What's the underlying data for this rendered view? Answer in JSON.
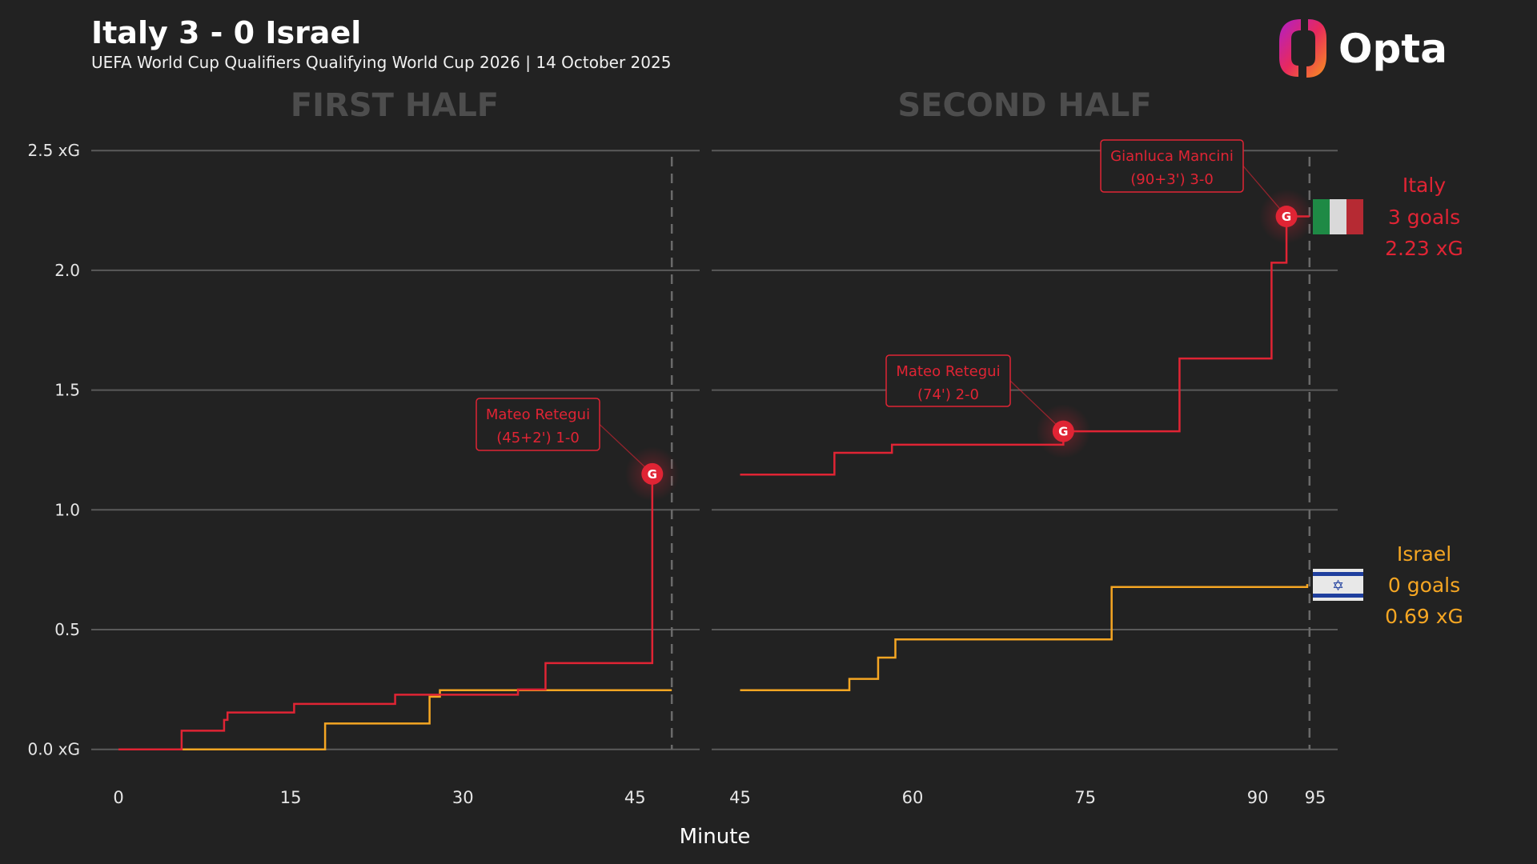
{
  "header": {
    "title": "Italy 3 - 0 Israel",
    "subtitle": "UEFA World Cup Qualifiers Qualifying World Cup 2026 | 14 October 2025",
    "logo_text": "Opta"
  },
  "chart_data": {
    "type": "line",
    "step": true,
    "title": "Italy 3 - 0 Israel",
    "subtitle": "UEFA World Cup Qualifiers Qualifying World Cup 2026 | 14 October 2025",
    "xlabel": "Minute",
    "ylabel": "xG",
    "ylim": [
      0,
      2.5
    ],
    "grid": true,
    "y_ticks": [
      {
        "value": 0.0,
        "label": "0.0 xG"
      },
      {
        "value": 0.5,
        "label": "0.5"
      },
      {
        "value": 1.0,
        "label": "1.0"
      },
      {
        "value": 1.5,
        "label": "1.5"
      },
      {
        "value": 2.0,
        "label": "2.0"
      },
      {
        "value": 2.5,
        "label": "2.5 xG"
      }
    ],
    "panels": [
      {
        "title": "FIRST HALF",
        "xlim": [
          0,
          48.2
        ],
        "end_minute": 48.2,
        "x_ticks": [
          {
            "value": 0,
            "label": "0"
          },
          {
            "value": 15,
            "label": "15"
          },
          {
            "value": 30,
            "label": "30"
          },
          {
            "value": 45,
            "label": "45"
          }
        ]
      },
      {
        "title": "SECOND HALF",
        "xlim": [
          45,
          95
        ],
        "end_minute": 94.5,
        "x_ticks": [
          {
            "value": 45,
            "label": "45"
          },
          {
            "value": 60,
            "label": "60"
          },
          {
            "value": 75,
            "label": "75"
          },
          {
            "value": 90,
            "label": "90"
          },
          {
            "value": 95,
            "label": "95"
          }
        ]
      }
    ],
    "series": [
      {
        "name": "Italy",
        "color": "#e02434",
        "goals_text": "3 goals",
        "xg_text": "2.23 xG",
        "flag": "italy-flag",
        "halves": [
          [
            [
              0,
              0
            ],
            [
              5.5,
              0.078
            ],
            [
              9.2,
              0.123
            ],
            [
              9.5,
              0.154
            ],
            [
              15.3,
              0.19
            ],
            [
              24.1,
              0.228
            ],
            [
              34.8,
              0.25
            ],
            [
              37.2,
              0.36
            ],
            [
              46.5,
              1.15
            ]
          ],
          [
            [
              45,
              1.147
            ],
            [
              53.2,
              1.238
            ],
            [
              58.2,
              1.272
            ],
            [
              73.1,
              1.328
            ],
            [
              83.2,
              1.632
            ],
            [
              91.2,
              2.032
            ],
            [
              92.5,
              2.225
            ],
            [
              94.5,
              2.225
            ]
          ]
        ]
      },
      {
        "name": "Israel",
        "color": "#f5a623",
        "goals_text": "0 goals",
        "xg_text": "0.69 xG",
        "flag": "israel-flag",
        "halves": [
          [
            [
              0,
              0
            ],
            [
              18.0,
              0.108
            ],
            [
              27.1,
              0.22
            ],
            [
              28.0,
              0.247
            ],
            [
              48.2,
              0.247
            ]
          ],
          [
            [
              45,
              0.247
            ],
            [
              54.5,
              0.294
            ],
            [
              57.0,
              0.383
            ],
            [
              58.5,
              0.459
            ],
            [
              77.3,
              0.678
            ],
            [
              94.3,
              0.69
            ]
          ]
        ]
      }
    ],
    "goals": [
      {
        "team": "Italy",
        "half": 0,
        "minute": 46.5,
        "xg": 1.15,
        "marker": "G",
        "player": "Mateo Retegui",
        "detail": "(45+2') 1-0"
      },
      {
        "team": "Italy",
        "half": 1,
        "minute": 73.1,
        "xg": 1.328,
        "marker": "G",
        "player": "Mateo Retegui",
        "detail": "(74') 2-0"
      },
      {
        "team": "Italy",
        "half": 1,
        "minute": 92.5,
        "xg": 2.225,
        "marker": "G",
        "player": "Gianluca Mancini",
        "detail": "(90+3') 3-0"
      }
    ]
  }
}
